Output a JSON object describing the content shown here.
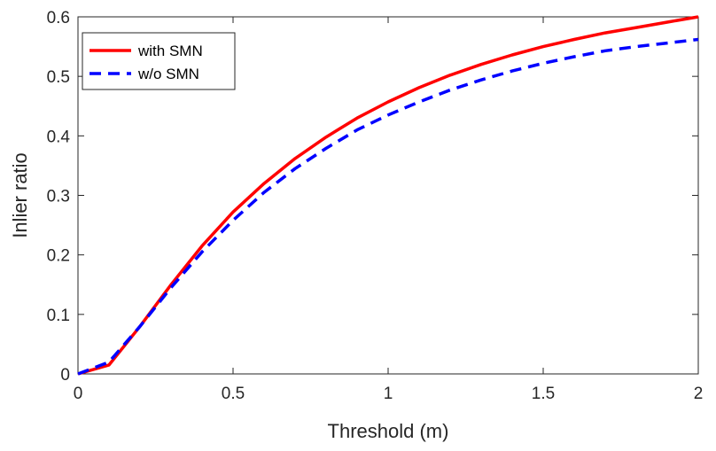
{
  "chart_data": {
    "type": "line",
    "title": "",
    "xlabel": "Threshold (m)",
    "ylabel": "Inlier ratio",
    "xlim": [
      0,
      2
    ],
    "ylim": [
      0,
      0.6
    ],
    "xticks": [
      0,
      0.5,
      1,
      1.5,
      2
    ],
    "xtick_labels": [
      "0",
      "0.5",
      "1",
      "1.5",
      "2"
    ],
    "yticks": [
      0,
      0.1,
      0.2,
      0.3,
      0.4,
      0.5,
      0.6
    ],
    "ytick_labels": [
      "0",
      "0.1",
      "0.2",
      "0.3",
      "0.4",
      "0.5",
      "0.6"
    ],
    "grid": false,
    "legend_position": "top-left",
    "x": [
      0,
      0.1,
      0.2,
      0.3,
      0.4,
      0.5,
      0.6,
      0.7,
      0.8,
      0.9,
      1.0,
      1.1,
      1.2,
      1.3,
      1.4,
      1.5,
      1.6,
      1.7,
      1.8,
      1.9,
      2.0
    ],
    "series": [
      {
        "name": "with SMN",
        "color": "#ff0000",
        "style": "solid",
        "values": [
          0.0,
          0.015,
          0.08,
          0.15,
          0.215,
          0.272,
          0.32,
          0.362,
          0.398,
          0.43,
          0.457,
          0.481,
          0.502,
          0.52,
          0.536,
          0.55,
          0.562,
          0.573,
          0.582,
          0.591,
          0.6
        ]
      },
      {
        "name": "w/o SMN",
        "color": "#0000ff",
        "style": "dashed",
        "values": [
          0.0,
          0.02,
          0.08,
          0.145,
          0.205,
          0.258,
          0.305,
          0.345,
          0.379,
          0.41,
          0.435,
          0.457,
          0.477,
          0.494,
          0.509,
          0.522,
          0.533,
          0.543,
          0.55,
          0.556,
          0.562
        ]
      }
    ]
  }
}
